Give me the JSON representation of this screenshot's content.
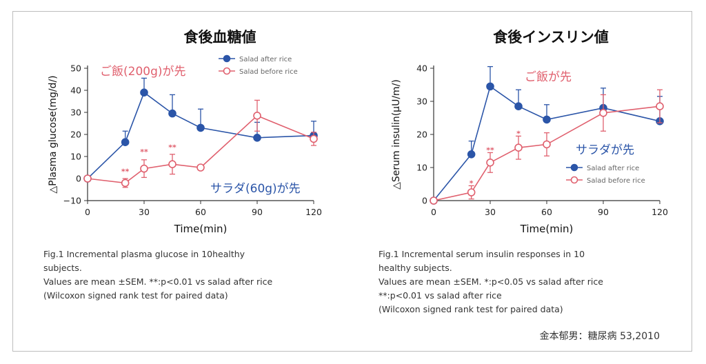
{
  "chart_data": [
    {
      "type": "line",
      "title": "食後血糖値",
      "ylabel": "△Plasma glucose(mg/d/)",
      "xlabel": "Time(min)",
      "x": [
        0,
        20,
        30,
        45,
        60,
        90,
        120
      ],
      "xticks": [
        "0",
        "30",
        "60",
        "90",
        "120"
      ],
      "xtick_values": [
        0,
        30,
        60,
        90,
        120
      ],
      "ylim": [
        -10,
        50
      ],
      "yticks": [
        -10,
        0,
        10,
        20,
        30,
        40,
        50
      ],
      "series": [
        {
          "name": "Salad after rice",
          "color": "#2b55a8",
          "marker": "filled",
          "values": [
            0,
            16.5,
            39,
            29.5,
            23,
            18.5,
            19.5
          ],
          "err": [
            0,
            5,
            6.5,
            8.5,
            8.5,
            7,
            6.5
          ]
        },
        {
          "name": "Salad before rice",
          "color": "#e0606e",
          "marker": "open",
          "values": [
            0,
            -2,
            4.5,
            6.5,
            5,
            28.5,
            18
          ],
          "err": [
            0,
            2,
            4,
            4.5,
            0,
            7,
            3
          ]
        }
      ],
      "significance": [
        {
          "x": 20,
          "y": 2,
          "label": "**"
        },
        {
          "x": 30,
          "y": 11,
          "label": "**"
        },
        {
          "x": 45,
          "y": 13,
          "label": "**"
        }
      ],
      "annotations": [
        {
          "text": "ご飯(200g)が先",
          "color": "#e0606e"
        },
        {
          "text": "サラダ(60g)が先",
          "color": "#2b55a8"
        }
      ],
      "legend_position": "top-center",
      "caption": [
        "Fig.1   Incremental plasma glucose in 10healthy",
        "subjects.",
        "Values are mean ±SEM. **:p<0.01 vs salad after rice",
        "(Wilcoxon signed rank test for paired data)"
      ]
    },
    {
      "type": "line",
      "title": "食後インスリン値",
      "ylabel": "△Serum insulin(μU/m/)",
      "xlabel": "Time(min)",
      "x": [
        0,
        20,
        30,
        45,
        60,
        90,
        120
      ],
      "xticks": [
        "0",
        "30",
        "60",
        "90",
        "120"
      ],
      "xtick_values": [
        0,
        30,
        60,
        90,
        120
      ],
      "ylim": [
        0,
        40
      ],
      "yticks": [
        0,
        10,
        20,
        30,
        40
      ],
      "series": [
        {
          "name": "Salad after rice",
          "color": "#2b55a8",
          "marker": "filled",
          "values": [
            0,
            14,
            34.5,
            28.5,
            24.5,
            28,
            24
          ],
          "err": [
            0,
            4,
            6,
            5,
            4.5,
            6,
            7.5
          ]
        },
        {
          "name": "Salad before rice",
          "color": "#e0606e",
          "marker": "open",
          "values": [
            0,
            2.5,
            11.5,
            16,
            17,
            26.5,
            28.5
          ],
          "err": [
            0,
            2,
            3,
            3.5,
            3.5,
            5.5,
            5
          ]
        }
      ],
      "significance": [
        {
          "x": 20,
          "y": 4.5,
          "label": "*"
        },
        {
          "x": 30,
          "y": 14.5,
          "label": "**"
        },
        {
          "x": 45,
          "y": 19.5,
          "label": "*"
        }
      ],
      "annotations": [
        {
          "text": "ご飯が先",
          "color": "#e0606e"
        },
        {
          "text": "サラダが先",
          "color": "#2b55a8"
        }
      ],
      "legend_position": "center-right",
      "caption": [
        "Fig.1   Incremental serum insulin responses in 10",
        "healthy subjects.",
        "Values are mean ±SEM. *:p<0.05 vs salad after rice",
        "**:p<0.01 vs salad after rice",
        "(Wilcoxon signed rank test for paired data)"
      ]
    }
  ],
  "source": "金本郁男：糖尿病 53,2010"
}
